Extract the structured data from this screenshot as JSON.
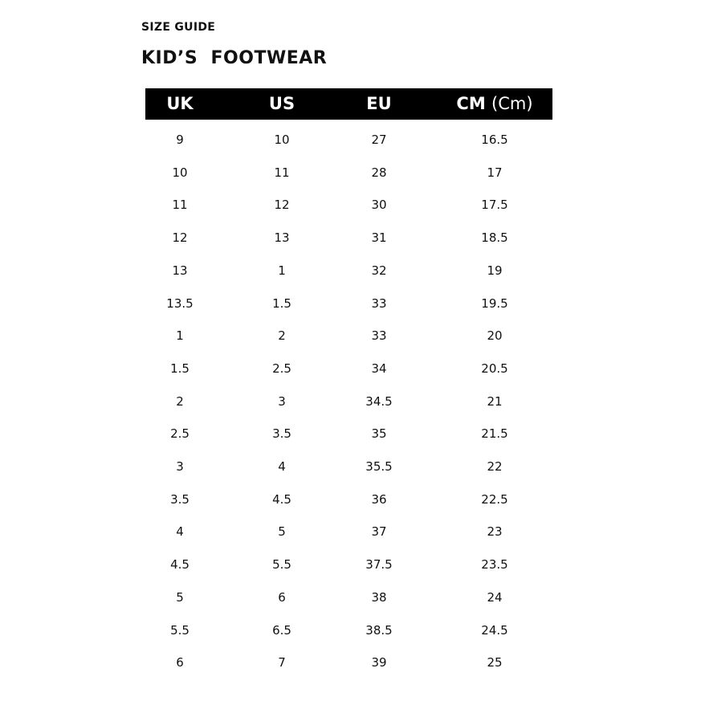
{
  "eyebrow": "SIZE GUIDE",
  "title": "KID’S  FOOTWEAR",
  "header": {
    "uk": "UK",
    "us": "US",
    "eu": "EU",
    "cm": "CM",
    "cm_unit": "(Cm)"
  },
  "colors": {
    "header_bg": "#000000",
    "header_text": "#ffffff",
    "text": "#111111"
  },
  "rows": [
    [
      "9",
      "10",
      "27",
      "16.5"
    ],
    [
      "10",
      "11",
      "28",
      "17"
    ],
    [
      "11",
      "12",
      "30",
      "17.5"
    ],
    [
      "12",
      "13",
      "31",
      "18.5"
    ],
    [
      "13",
      "1",
      "32",
      "19"
    ],
    [
      "13.5",
      "1.5",
      "33",
      "19.5"
    ],
    [
      "1",
      "2",
      "33",
      "20"
    ],
    [
      "1.5",
      "2.5",
      "34",
      "20.5"
    ],
    [
      "2",
      "3",
      "34.5",
      "21"
    ],
    [
      "2.5",
      "3.5",
      "35",
      "21.5"
    ],
    [
      "3",
      "4",
      "35.5",
      "22"
    ],
    [
      "3.5",
      "4.5",
      "36",
      "22.5"
    ],
    [
      "4",
      "5",
      "37",
      "23"
    ],
    [
      "4.5",
      "5.5",
      "37.5",
      "23.5"
    ],
    [
      "5",
      "6",
      "38",
      "24"
    ],
    [
      "5.5",
      "6.5",
      "38.5",
      "24.5"
    ],
    [
      "6",
      "7",
      "39",
      "25"
    ]
  ]
}
